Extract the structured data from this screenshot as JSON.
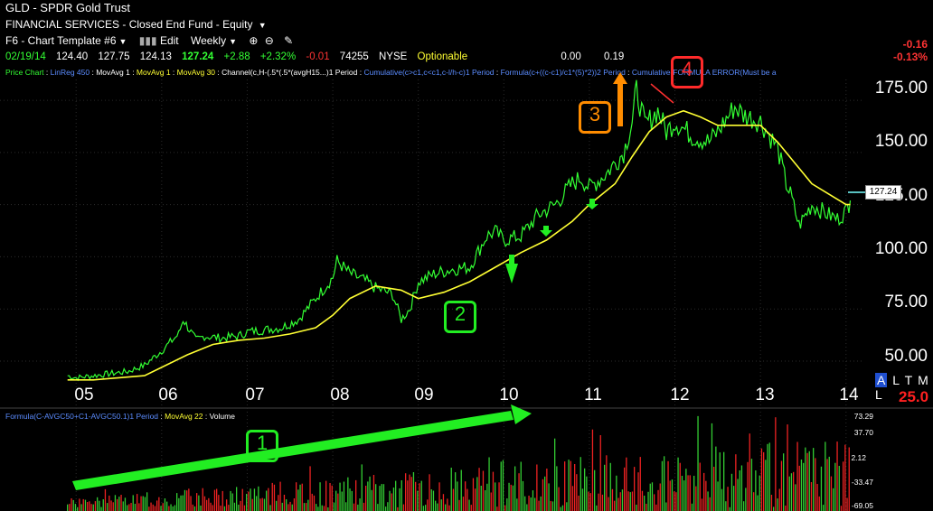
{
  "header": {
    "title": "GLD - SPDR Gold Trust",
    "subtitle": "FINANCIAL SERVICES - Closed End Fund - Equity",
    "template_label": "F6 - Chart Template #6",
    "edit_label": "Edit",
    "period_label": "Weekly",
    "quote": {
      "date": "02/19/14",
      "open": "124.40",
      "high": "127.75",
      "low": "124.13",
      "last": "127.24",
      "change": "+2.88",
      "pct": "+2.32%",
      "tick": "-0.01",
      "volume": "74255",
      "exchange": "NYSE",
      "optionable": "Optionable",
      "f1": "0.00",
      "f2": "0.19"
    },
    "right_change": "-0.16",
    "right_pct": "-0.13%"
  },
  "indicators": {
    "items": [
      {
        "text": "Price Chart",
        "color": "#33ff33"
      },
      {
        "text": "LinReg 450",
        "color": "#5b8cff"
      },
      {
        "text": "MovAvg 1",
        "color": "#ffffff"
      },
      {
        "text": "MovAvg 1",
        "color": "#ffff33"
      },
      {
        "text": "MovAvg 30",
        "color": "#ffff33"
      },
      {
        "text": "Channel(c,H-(.5*(.5*(avgH15...)1 Period",
        "color": "#ffffff"
      },
      {
        "text": "Cumulative(c>c1,c<c1,c-l/h-c)1 Period",
        "color": "#5b8cff"
      },
      {
        "text": "Formula(c+((c-c1)/c1*(5)*2))2 Period",
        "color": "#5b8cff"
      },
      {
        "text": "Cumulative(FORMULA ERROR(Must be a",
        "color": "#5b8cff"
      }
    ],
    "volume": [
      {
        "text": "Formula(C-AVGC50+C1-AVGC50.1)1 Period",
        "color": "#5b8cff"
      },
      {
        "text": "MovAvg 22",
        "color": "#ffff33"
      },
      {
        "text": "Volume",
        "color": "#ffffff"
      }
    ]
  },
  "axis": {
    "price_ticks": [
      "175.00",
      "150.00",
      "125.00",
      "100.00",
      "75.00",
      "50.00"
    ],
    "x_ticks": [
      "05",
      "06",
      "07",
      "08",
      "09",
      "10",
      "11",
      "12",
      "13",
      "14"
    ],
    "volume_ticks": [
      "73.29",
      "37.70",
      "2.12",
      "-33.47",
      "-69.05"
    ],
    "current_price": "127.24",
    "tools": [
      "A",
      "L",
      "T",
      "M",
      "L"
    ],
    "right_value": "25.0"
  },
  "annotations": [
    {
      "label": "1",
      "color": "#22ee22"
    },
    {
      "label": "2",
      "color": "#22ee22"
    },
    {
      "label": "3",
      "color": "#ff8c00"
    },
    {
      "label": "4",
      "color": "#ff2a2a"
    }
  ],
  "colors": {
    "price": "#33ff33",
    "ma": "#ffff33",
    "vol_up": "#33cc33",
    "vol_down": "#ee2222",
    "arrow_green": "#22ee22",
    "arrow_orange": "#ff8c00"
  },
  "chart_data": {
    "type": "line",
    "title": "GLD - SPDR Gold Trust",
    "xlabel": "",
    "ylabel": "",
    "ylim": [
      37,
      185
    ],
    "x_range": [
      2004.85,
      2014.15
    ],
    "series": [
      {
        "name": "Price Chart",
        "x": [
          2004.9,
          2005.0,
          2005.2,
          2005.4,
          2005.6,
          2005.8,
          2006.0,
          2006.2,
          2006.25,
          2006.4,
          2006.5,
          2006.7,
          2006.9,
          2007.0,
          2007.2,
          2007.4,
          2007.6,
          2007.8,
          2008.0,
          2008.05,
          2008.2,
          2008.4,
          2008.5,
          2008.7,
          2008.8,
          2008.9,
          2009.0,
          2009.2,
          2009.4,
          2009.6,
          2009.8,
          2009.9,
          2010.0,
          2010.2,
          2010.4,
          2010.6,
          2010.8,
          2010.9,
          2011.0,
          2011.2,
          2011.4,
          2011.5,
          2011.55,
          2011.65,
          2011.8,
          2011.9,
          2012.0,
          2012.2,
          2012.4,
          2012.5,
          2012.7,
          2012.8,
          2013.0,
          2013.2,
          2013.3,
          2013.35,
          2013.45,
          2013.6,
          2013.8,
          2013.9,
          2014.0,
          2014.05
        ],
        "y": [
          43,
          42,
          43,
          44,
          45,
          48,
          55,
          63,
          70,
          60,
          62,
          61,
          62,
          64,
          65,
          66,
          70,
          80,
          90,
          98,
          92,
          88,
          85,
          82,
          70,
          75,
          88,
          92,
          94,
          95,
          110,
          112,
          108,
          110,
          120,
          125,
          135,
          138,
          133,
          140,
          150,
          165,
          180,
          163,
          170,
          160,
          165,
          158,
          155,
          160,
          172,
          168,
          165,
          152,
          135,
          130,
          115,
          125,
          120,
          118,
          122,
          127
        ]
      },
      {
        "name": "MovAvg 30",
        "x": [
          2004.9,
          2005.2,
          2005.5,
          2005.8,
          2006.0,
          2006.3,
          2006.6,
          2006.9,
          2007.2,
          2007.5,
          2007.8,
          2008.0,
          2008.2,
          2008.5,
          2008.8,
          2009.0,
          2009.3,
          2009.6,
          2009.9,
          2010.2,
          2010.5,
          2010.8,
          2011.0,
          2011.3,
          2011.5,
          2011.7,
          2011.9,
          2012.1,
          2012.3,
          2012.5,
          2012.7,
          2012.9,
          2013.0,
          2013.2,
          2013.4,
          2013.6,
          2013.8,
          2014.0,
          2014.05
        ],
        "y": [
          41,
          41,
          42,
          43,
          47,
          53,
          58,
          60,
          61,
          63,
          66,
          72,
          80,
          86,
          84,
          80,
          83,
          88,
          95,
          102,
          108,
          117,
          125,
          135,
          148,
          160,
          167,
          170,
          167,
          163,
          163,
          163,
          163,
          155,
          145,
          135,
          130,
          125,
          125
        ]
      }
    ],
    "volume_ylim": [
      -69.05,
      73.29
    ]
  }
}
